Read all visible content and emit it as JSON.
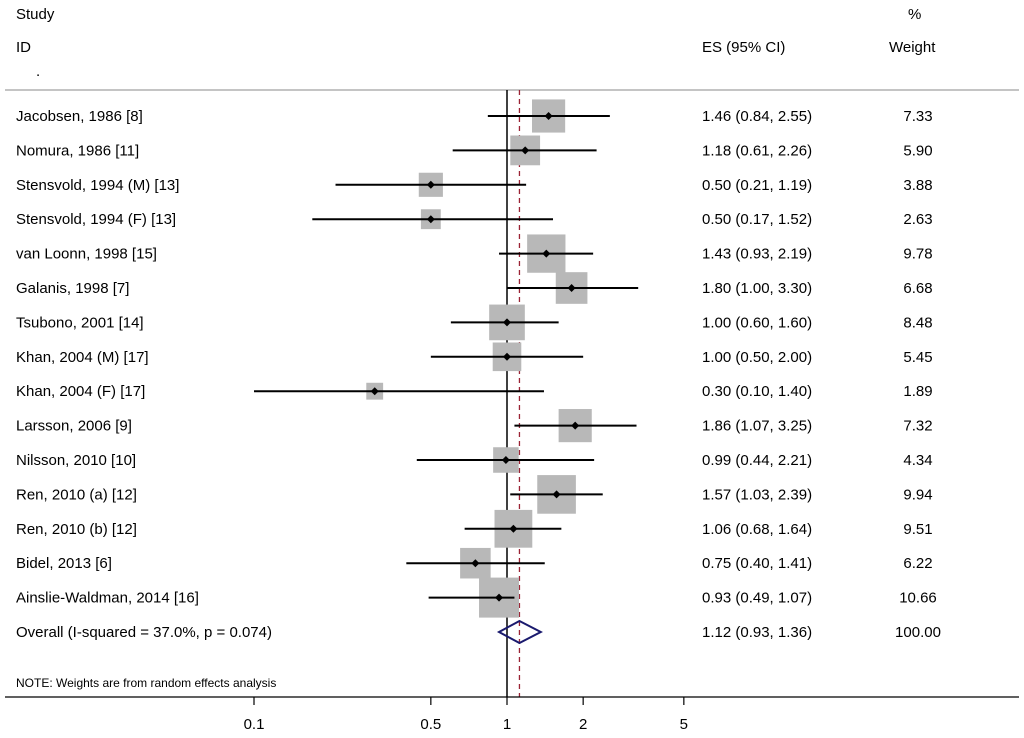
{
  "header": {
    "study_line1": "Study",
    "study_line2": "ID",
    "es_label": "ES (95% CI)",
    "weight_line1": "%",
    "weight_line2": "Weight"
  },
  "chart_data": {
    "type": "forest",
    "scale": "log",
    "x_ticks": [
      0.1,
      0.5,
      1,
      2,
      5
    ],
    "x_tick_labels": [
      "0.1",
      "0.5",
      "1",
      "2",
      "5"
    ],
    "null_line": 1,
    "studies": [
      {
        "label": "Jacobsen, 1986 [8]",
        "es": 1.46,
        "lo": 0.84,
        "hi": 2.55,
        "ci_text": "1.46 (0.84, 2.55)",
        "weight": 7.33,
        "weight_text": "7.33"
      },
      {
        "label": "Nomura, 1986 [11]",
        "es": 1.18,
        "lo": 0.61,
        "hi": 2.26,
        "ci_text": "1.18 (0.61, 2.26)",
        "weight": 5.9,
        "weight_text": "5.90"
      },
      {
        "label": "Stensvold, 1994 (M) [13]",
        "es": 0.5,
        "lo": 0.21,
        "hi": 1.19,
        "ci_text": "0.50 (0.21, 1.19)",
        "weight": 3.88,
        "weight_text": "3.88"
      },
      {
        "label": "Stensvold, 1994 (F) [13]",
        "es": 0.5,
        "lo": 0.17,
        "hi": 1.52,
        "ci_text": "0.50 (0.17, 1.52)",
        "weight": 2.63,
        "weight_text": "2.63"
      },
      {
        "label": "van Loonn, 1998 [15]",
        "es": 1.43,
        "lo": 0.93,
        "hi": 2.19,
        "ci_text": "1.43 (0.93, 2.19)",
        "weight": 9.78,
        "weight_text": "9.78"
      },
      {
        "label": "Galanis, 1998 [7]",
        "es": 1.8,
        "lo": 1.0,
        "hi": 3.3,
        "ci_text": "1.80 (1.00, 3.30)",
        "weight": 6.68,
        "weight_text": "6.68"
      },
      {
        "label": "Tsubono, 2001 [14]",
        "es": 1.0,
        "lo": 0.6,
        "hi": 1.6,
        "ci_text": "1.00 (0.60, 1.60)",
        "weight": 8.48,
        "weight_text": "8.48"
      },
      {
        "label": "Khan, 2004 (M) [17]",
        "es": 1.0,
        "lo": 0.5,
        "hi": 2.0,
        "ci_text": "1.00 (0.50, 2.00)",
        "weight": 5.45,
        "weight_text": "5.45"
      },
      {
        "label": "Khan, 2004 (F) [17]",
        "es": 0.3,
        "lo": 0.1,
        "hi": 1.4,
        "ci_text": "0.30 (0.10, 1.40)",
        "weight": 1.89,
        "weight_text": "1.89"
      },
      {
        "label": "Larsson, 2006 [9]",
        "es": 1.86,
        "lo": 1.07,
        "hi": 3.25,
        "ci_text": "1.86 (1.07, 3.25)",
        "weight": 7.32,
        "weight_text": "7.32"
      },
      {
        "label": "Nilsson, 2010 [10]",
        "es": 0.99,
        "lo": 0.44,
        "hi": 2.21,
        "ci_text": "0.99 (0.44, 2.21)",
        "weight": 4.34,
        "weight_text": "4.34"
      },
      {
        "label": "Ren, 2010 (a) [12]",
        "es": 1.57,
        "lo": 1.03,
        "hi": 2.39,
        "ci_text": "1.57 (1.03, 2.39)",
        "weight": 9.94,
        "weight_text": "9.94"
      },
      {
        "label": "Ren, 2010 (b) [12]",
        "es": 1.06,
        "lo": 0.68,
        "hi": 1.64,
        "ci_text": "1.06 (0.68, 1.64)",
        "weight": 9.51,
        "weight_text": "9.51"
      },
      {
        "label": "Bidel, 2013 [6]",
        "es": 0.75,
        "lo": 0.4,
        "hi": 1.41,
        "ci_text": "0.75 (0.40, 1.41)",
        "weight": 6.22,
        "weight_text": "6.22"
      },
      {
        "label": "Ainslie-Waldman, 2014 [16]",
        "es": 0.93,
        "lo": 0.49,
        "hi": 1.07,
        "ci_text": "0.93 (0.49, 1.07)",
        "weight": 10.66,
        "weight_text": "10.66"
      }
    ],
    "overall": {
      "label": "Overall  (I-squared = 37.0%, p = 0.074)",
      "es": 1.12,
      "lo": 0.93,
      "hi": 1.36,
      "ci_text": "1.12 (0.93, 1.36)",
      "weight_text": "100.00"
    },
    "note": "NOTE: Weights are from random effects analysis",
    "colors": {
      "box": "#b8b8b8",
      "line": "#000000",
      "overall_line": "#9b2335",
      "diamond": "#1a1a6e",
      "separator": "#b0b0b0"
    }
  }
}
